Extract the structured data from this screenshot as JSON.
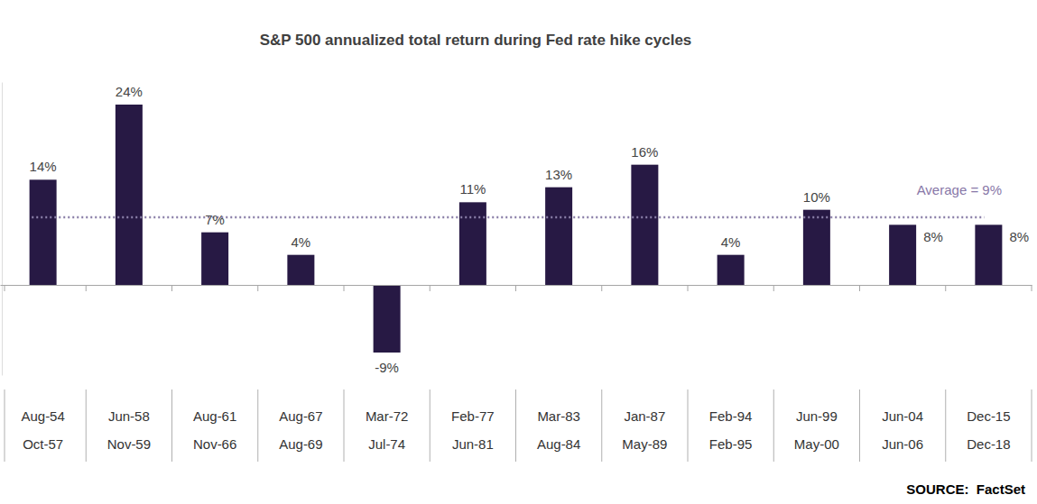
{
  "chart_data": {
    "type": "bar",
    "title": "S&P 500 annualized total return during Fed rate hike cycles",
    "categories": [
      [
        "Aug-54",
        "Oct-57"
      ],
      [
        "Jun-58",
        "Nov-59"
      ],
      [
        "Aug-61",
        "Nov-66"
      ],
      [
        "Aug-67",
        "Aug-69"
      ],
      [
        "Mar-72",
        "Jul-74"
      ],
      [
        "Feb-77",
        "Jun-81"
      ],
      [
        "Mar-83",
        "Aug-84"
      ],
      [
        "Jan-87",
        "May-89"
      ],
      [
        "Feb-94",
        "Feb-95"
      ],
      [
        "Jun-99",
        "May-00"
      ],
      [
        "Jun-04",
        "Jun-06"
      ],
      [
        "Dec-15",
        "Dec-18"
      ]
    ],
    "values": [
      14,
      24,
      7,
      4,
      -9,
      11,
      13,
      16,
      4,
      10,
      8,
      8
    ],
    "value_labels": [
      "14%",
      "24%",
      "7%",
      "4%",
      "-9%",
      "11%",
      "13%",
      "16%",
      "4%",
      "10%",
      "8%",
      "8%"
    ],
    "color": "#271944",
    "data_labels": true,
    "tick_labels": "x",
    "ylim": [
      -12,
      27
    ],
    "yticks": [
      0
    ],
    "annotations": [
      {
        "text": "Average = 9%",
        "value": 9
      },
      {
        "text": "SOURCE:  FactSet"
      }
    ]
  }
}
